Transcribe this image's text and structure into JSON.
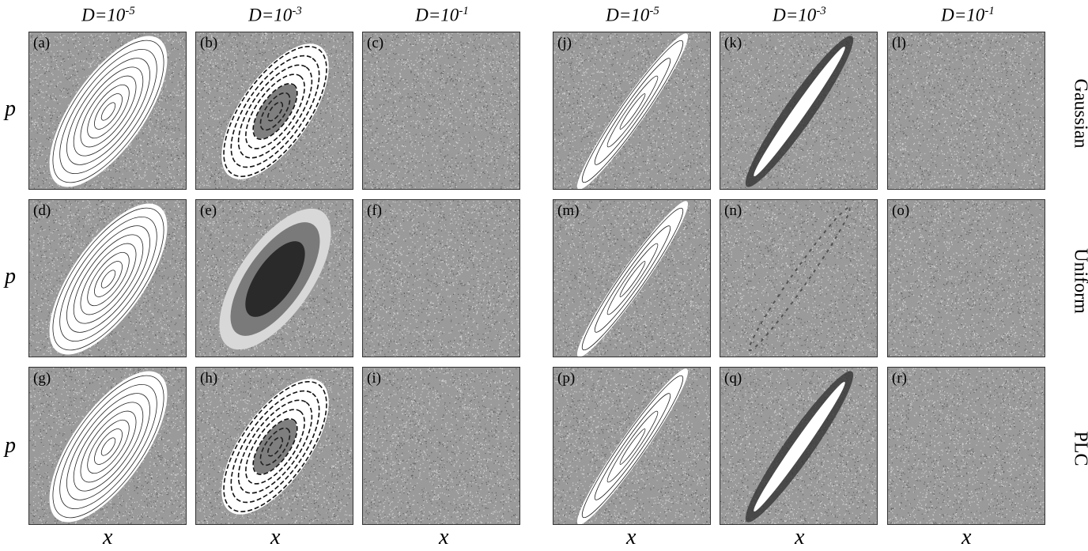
{
  "figure": {
    "column_titles": [
      {
        "base": "D=10",
        "exp": "-5"
      },
      {
        "base": "D=10",
        "exp": "-3"
      },
      {
        "base": "D=10",
        "exp": "-1"
      },
      {
        "base": "D=10",
        "exp": "-5"
      },
      {
        "base": "D=10",
        "exp": "-3"
      },
      {
        "base": "D=10",
        "exp": "-1"
      }
    ],
    "x_axis_label": "x",
    "y_axis_label": "p",
    "row_labels": [
      "Gaussian",
      "Uniform",
      "PLC"
    ],
    "panel_labels": [
      [
        "(a)",
        "(b)",
        "(c)",
        "(j)",
        "(k)",
        "(l)"
      ],
      [
        "(d)",
        "(e)",
        "(f)",
        "(m)",
        "(n)",
        "(o)"
      ],
      [
        "(g)",
        "(h)",
        "(i)",
        "(p)",
        "(q)",
        "(r)"
      ]
    ],
    "colors": {
      "noise_background": "#9a9a9a",
      "orbit_line": "#ffffff",
      "dense_core": "#2a2a2a"
    }
  }
}
